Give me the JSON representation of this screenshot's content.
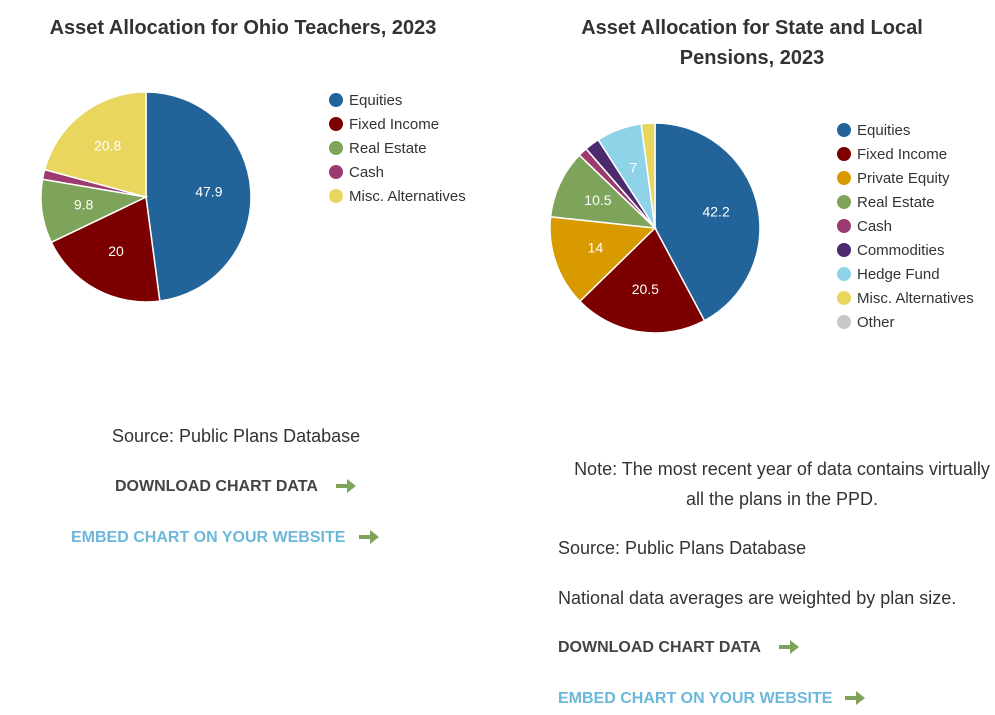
{
  "chart_data": [
    {
      "type": "pie",
      "title": "Asset Allocation for Ohio Teachers, 2023",
      "categories": [
        "Equities",
        "Fixed Income",
        "Real Estate",
        "Cash",
        "Misc. Alternatives"
      ],
      "values": [
        47.9,
        20,
        9.8,
        1.5,
        20.8
      ],
      "colors": [
        "#22649a",
        "#7c0000",
        "#7ea35a",
        "#9b3b70",
        "#e8d65f"
      ]
    },
    {
      "type": "pie",
      "title": "Asset Allocation for State and Local Pensions, 2023",
      "categories": [
        "Equities",
        "Fixed Income",
        "Private Equity",
        "Real Estate",
        "Cash",
        "Commodities",
        "Hedge Fund",
        "Misc. Alternatives",
        "Other"
      ],
      "values": [
        42.2,
        20.5,
        14,
        10.5,
        1.4,
        2.3,
        7.0,
        2.1,
        0
      ],
      "colors": [
        "#22649a",
        "#7c0000",
        "#d99a00",
        "#7ea35a",
        "#9b3b70",
        "#4b2a6e",
        "#8fd3e8",
        "#e8d65f",
        "#c8c8c8"
      ]
    }
  ],
  "left_panel": {
    "source": "Source: Public Plans Database",
    "download": "DOWNLOAD CHART DATA",
    "embed": "EMBED CHART ON YOUR WEBSITE"
  },
  "right_panel": {
    "note": "Note: The most recent year of data contains virtually all the plans in the PPD.",
    "source": "Source: Public Plans Database",
    "weighting": "National data averages are weighted by plan size.",
    "download": "DOWNLOAD CHART DATA",
    "embed": "EMBED CHART ON YOUR WEBSITE"
  }
}
